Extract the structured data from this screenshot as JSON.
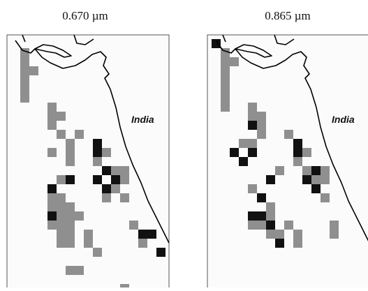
{
  "panels": [
    {
      "title": "0.670 µm",
      "label": "India"
    },
    {
      "title": "0.865 µm",
      "label": "India"
    }
  ]
}
